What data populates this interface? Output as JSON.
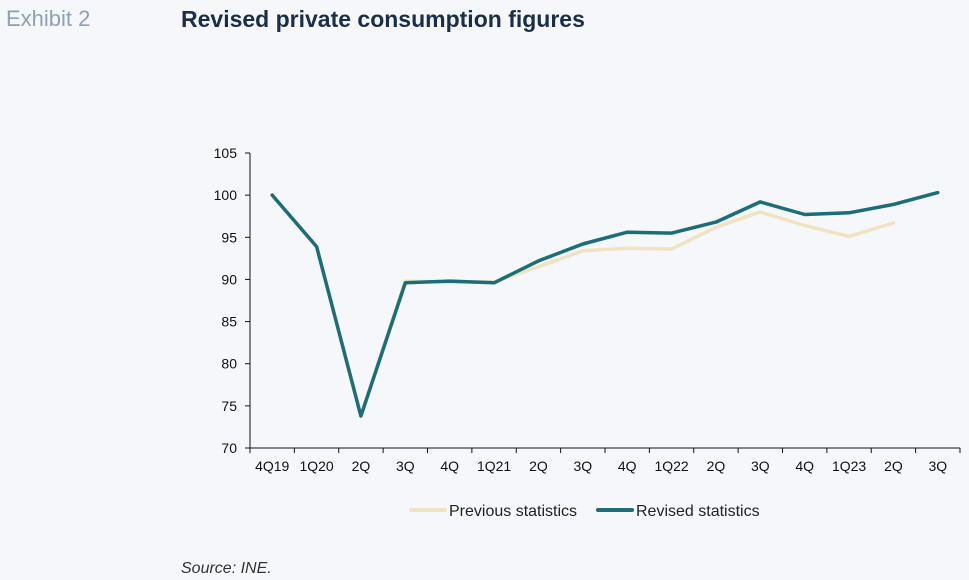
{
  "header": {
    "exhibit": "Exhibit 2",
    "title": "Revised private consumption figures"
  },
  "footer": {
    "source": "Source: INE."
  },
  "chart_data": {
    "type": "line",
    "title": "Revised private consumption figures",
    "xlabel": "",
    "ylabel": "",
    "categories": [
      "4Q19",
      "1Q20",
      "2Q",
      "3Q",
      "4Q",
      "1Q21",
      "2Q",
      "3Q",
      "4Q",
      "1Q22",
      "2Q",
      "3Q",
      "4Q",
      "1Q23",
      "2Q",
      "3Q"
    ],
    "ylim": [
      70,
      105
    ],
    "yticks": [
      70,
      75,
      80,
      85,
      90,
      95,
      100,
      105
    ],
    "grid": false,
    "legend_position": "bottom",
    "series": [
      {
        "name": "Previous statistics",
        "color": "#efe3c2",
        "values": [
          100.0,
          93.9,
          73.8,
          89.8,
          89.7,
          89.7,
          91.5,
          93.4,
          93.7,
          93.6,
          96.2,
          98.0,
          96.4,
          95.1,
          96.7,
          null
        ]
      },
      {
        "name": "Revised statistics",
        "color": "#1b6e78",
        "values": [
          100.0,
          93.9,
          73.8,
          89.6,
          89.8,
          89.6,
          92.2,
          94.2,
          95.6,
          95.5,
          96.8,
          99.2,
          97.7,
          97.9,
          98.9,
          100.3
        ]
      }
    ]
  }
}
